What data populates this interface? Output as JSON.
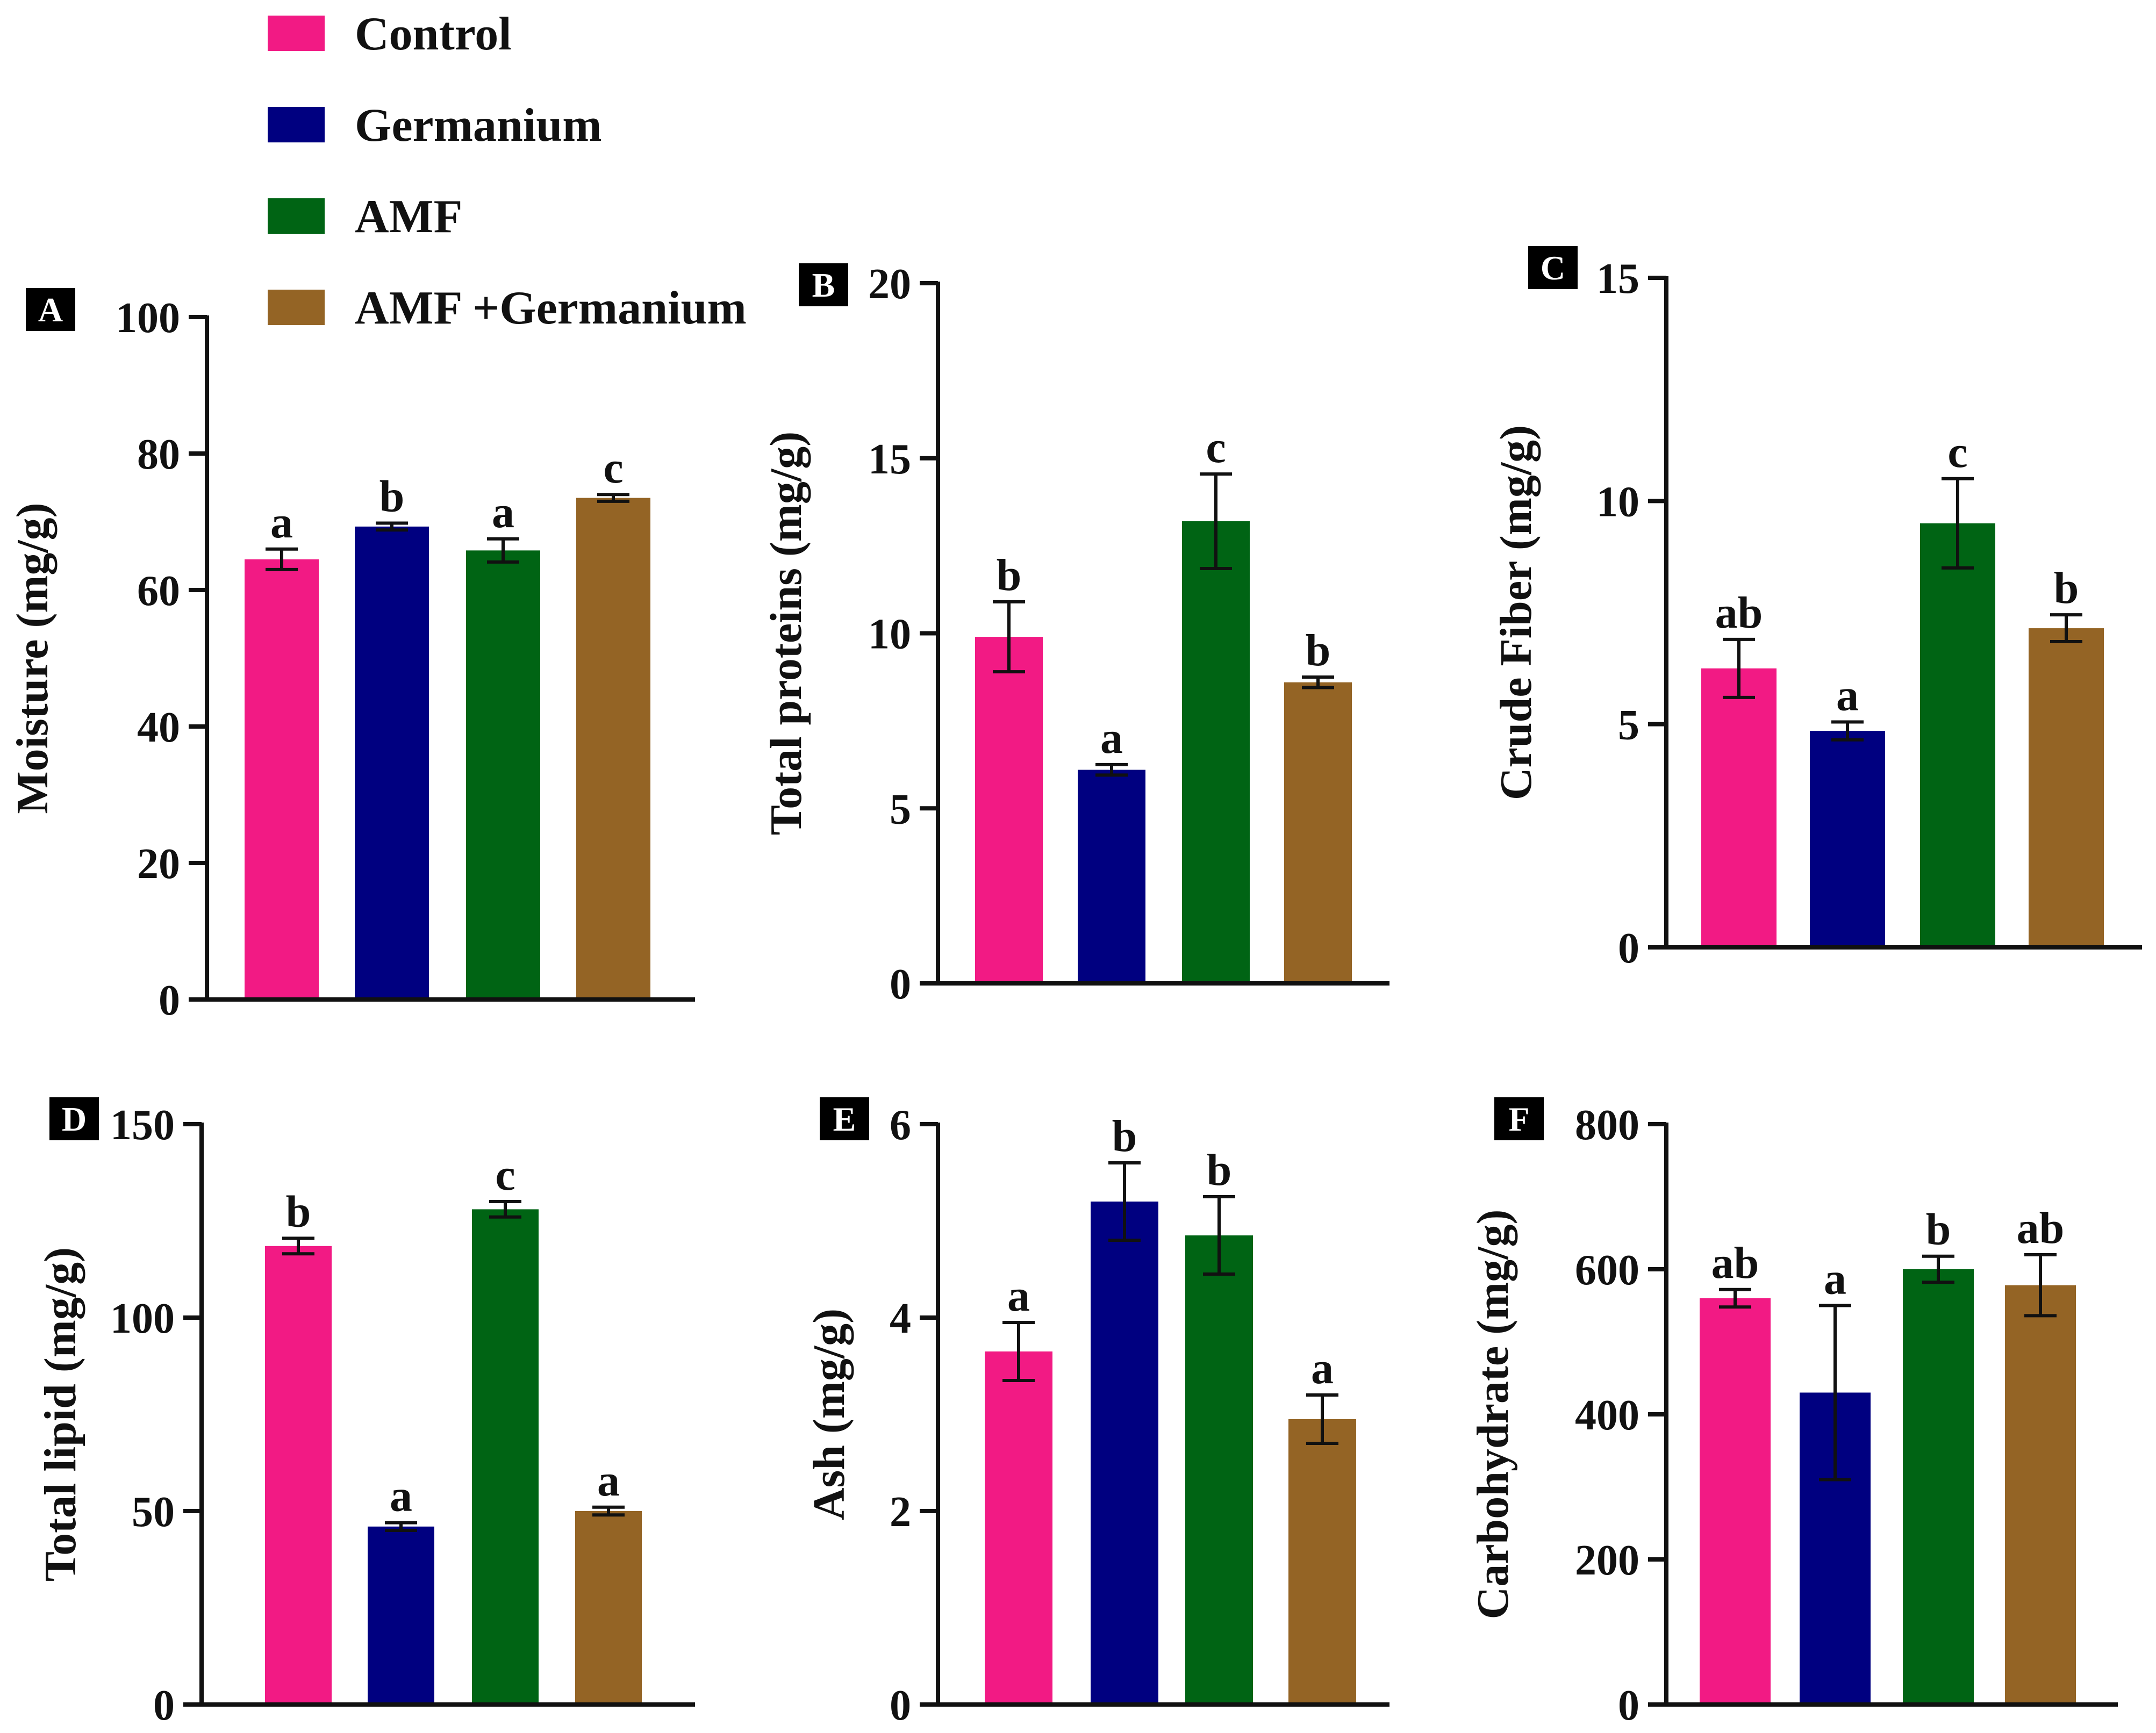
{
  "legend": [
    {
      "name": "Control",
      "color": "#f21a84"
    },
    {
      "name": "Germanium",
      "color": "#000080"
    },
    {
      "name": "AMF",
      "color": "#006414"
    },
    {
      "name": "AMF +Germanium",
      "color": "#946425"
    }
  ],
  "chart_data": [
    {
      "type": "bar",
      "panel": "A",
      "categories": [
        "Control",
        "Germanium",
        "AMF",
        "AMF +Germanium"
      ],
      "values": [
        64.5,
        69.3,
        65.8,
        73.5
      ],
      "errors": [
        1.5,
        0.5,
        1.7,
        0.5
      ],
      "letters": [
        "a",
        "b",
        "a",
        "c"
      ],
      "ylabel": "Moisture (mg/g)",
      "ylim": [
        0,
        100
      ],
      "yticks": [
        0,
        20,
        40,
        60,
        80,
        100
      ]
    },
    {
      "type": "bar",
      "panel": "B",
      "categories": [
        "Control",
        "Germanium",
        "AMF",
        "AMF +Germanium"
      ],
      "values": [
        9.9,
        6.1,
        13.2,
        8.6
      ],
      "errors": [
        1.0,
        0.15,
        1.35,
        0.15
      ],
      "letters": [
        "b",
        "a",
        "c",
        "b"
      ],
      "ylabel": "Total proteins (mg/g)",
      "ylim": [
        0,
        20
      ],
      "yticks": [
        0,
        5,
        10,
        15,
        20
      ]
    },
    {
      "type": "bar",
      "panel": "C",
      "categories": [
        "Control",
        "Germanium",
        "AMF",
        "AMF +Germanium"
      ],
      "values": [
        6.25,
        4.85,
        9.5,
        7.15
      ],
      "errors": [
        0.65,
        0.2,
        1.0,
        0.3
      ],
      "letters": [
        "ab",
        "a",
        "c",
        "b"
      ],
      "ylabel": "Crude Fiber (mg/g)",
      "ylim": [
        0,
        15
      ],
      "yticks": [
        0,
        5,
        10,
        15
      ]
    },
    {
      "type": "bar",
      "panel": "D",
      "categories": [
        "Control",
        "Germanium",
        "AMF",
        "AMF +Germanium"
      ],
      "values": [
        118.5,
        46,
        128,
        50
      ],
      "errors": [
        2,
        1,
        2,
        1
      ],
      "letters": [
        "b",
        "a",
        "c",
        "a"
      ],
      "ylabel": "Total lipid (mg/g)",
      "ylim": [
        0,
        150
      ],
      "yticks": [
        0,
        50,
        100,
        150
      ]
    },
    {
      "type": "bar",
      "panel": "E",
      "categories": [
        "Control",
        "Germanium",
        "AMF",
        "AMF +Germanium"
      ],
      "values": [
        3.65,
        5.2,
        4.85,
        2.95
      ],
      "errors": [
        0.3,
        0.4,
        0.4,
        0.25
      ],
      "letters": [
        "a",
        "b",
        "b",
        "a"
      ],
      "ylabel": "Ash (mg/g)",
      "ylim": [
        0,
        6
      ],
      "yticks": [
        0,
        2,
        4,
        6
      ]
    },
    {
      "type": "bar",
      "panel": "F",
      "categories": [
        "Control",
        "Germanium",
        "AMF",
        "AMF +Germanium"
      ],
      "values": [
        560,
        430,
        600,
        578
      ],
      "errors": [
        12,
        120,
        18,
        42
      ],
      "letters": [
        "ab",
        "a",
        "b",
        "ab"
      ],
      "ylabel": "Carbohydrate (mg/g)",
      "ylim": [
        0,
        800
      ],
      "yticks": [
        0,
        200,
        400,
        600,
        800
      ]
    }
  ]
}
